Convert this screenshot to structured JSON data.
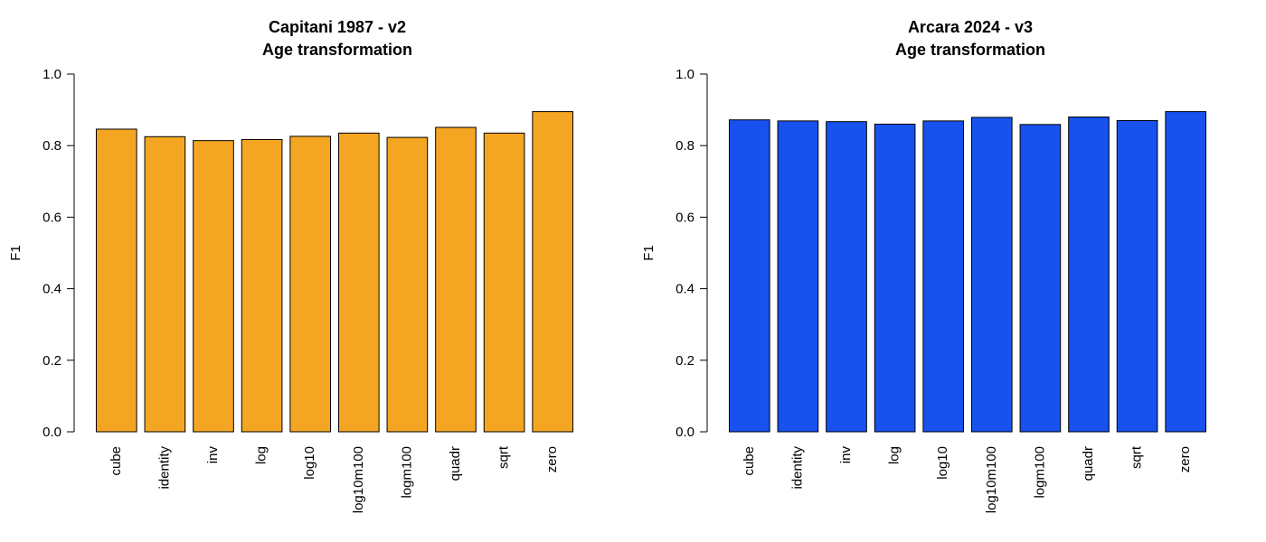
{
  "chart_data": [
    {
      "type": "bar",
      "title": "Capitani 1987 - v2",
      "subtitle": "Age transformation",
      "xlabel": "",
      "ylabel": "F1",
      "ylim": [
        0,
        1
      ],
      "yticks": [
        "0.0",
        "0.2",
        "0.4",
        "0.6",
        "0.8",
        "1.0"
      ],
      "grid": false,
      "color": "#F4A623",
      "categories": [
        "cube",
        "identity",
        "inv",
        "log",
        "log10",
        "log10m100",
        "logm100",
        "quadr",
        "sqrt",
        "zero"
      ],
      "values": [
        0.846,
        0.825,
        0.814,
        0.817,
        0.826,
        0.835,
        0.823,
        0.851,
        0.835,
        0.895
      ]
    },
    {
      "type": "bar",
      "title": "Arcara 2024 - v3",
      "subtitle": "Age transformation",
      "xlabel": "",
      "ylabel": "F1",
      "ylim": [
        0,
        1
      ],
      "yticks": [
        "0.0",
        "0.2",
        "0.4",
        "0.6",
        "0.8",
        "1.0"
      ],
      "grid": false,
      "color": "#1752EE",
      "categories": [
        "cube",
        "identity",
        "inv",
        "log",
        "log10",
        "log10m100",
        "logm100",
        "quadr",
        "sqrt",
        "zero"
      ],
      "values": [
        0.872,
        0.869,
        0.867,
        0.86,
        0.869,
        0.879,
        0.859,
        0.88,
        0.87,
        0.895
      ]
    }
  ]
}
